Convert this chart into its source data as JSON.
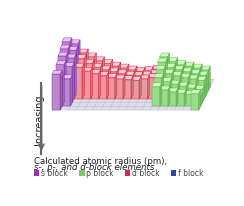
{
  "title_line1": "Calculated atomic radius (pm),",
  "title_line2": "s-, p-, and d-block elements",
  "arrow_label_top": "Increasing",
  "arrow_label_left": "Increasing",
  "legend": [
    {
      "label": "s block",
      "color": "#9933bb"
    },
    {
      "label": "p block",
      "color": "#77cc66"
    },
    {
      "label": "d block",
      "color": "#dd2255"
    },
    {
      "label": "f block",
      "color": "#3344aa"
    }
  ],
  "bg_color": "#ffffff",
  "s_face_color": "#bb88cc",
  "s_edge_color": "#7722aa",
  "p_face_color": "#99dd88",
  "p_edge_color": "#55aa44",
  "d_face_color": "#ee9999",
  "d_edge_color": "#cc1144",
  "grid_color": "#bbbbcc",
  "grid_bg": "#dddde8",
  "arrow_color": "#666666",
  "text_color": "#222222"
}
